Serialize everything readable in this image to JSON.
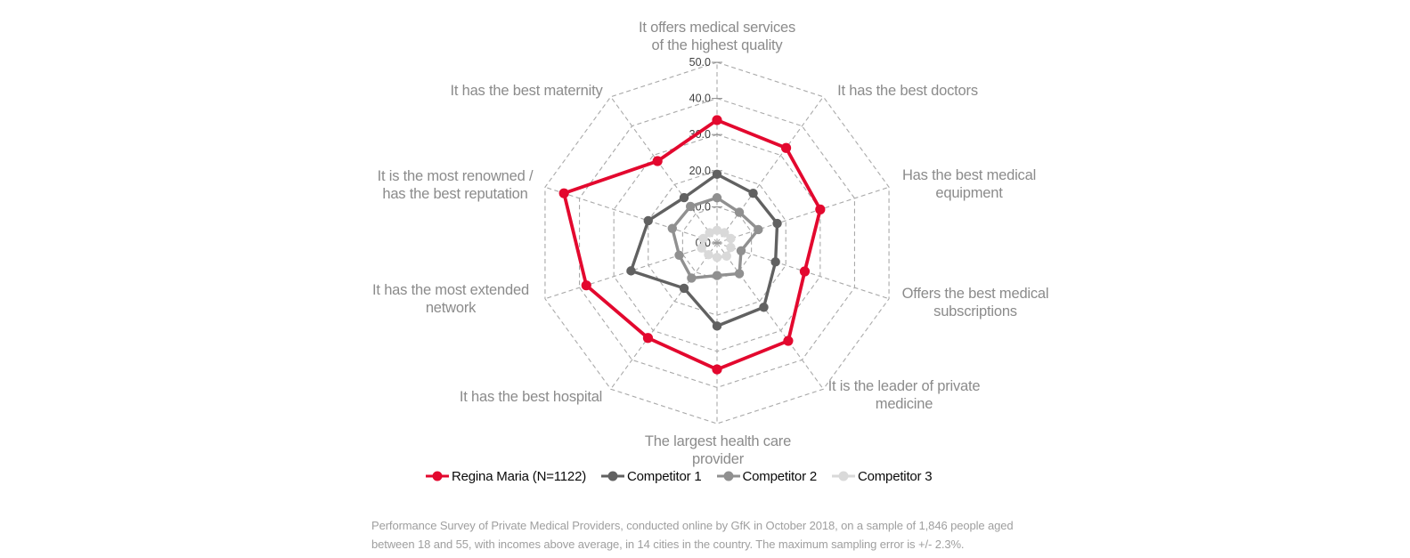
{
  "chart_data": {
    "type": "radar",
    "title": "",
    "categories": [
      "It offers medical services\nof the highest quality",
      "It has the best doctors",
      "Has the best medical\nequipment",
      "Offers the best medical\nsubscriptions",
      "It is the leader of private\nmedicine",
      "The largest health care\nprovider",
      "It has the best hospital",
      "It has the most extended\nnetwork",
      "It is the most renowned /\nhas the best reputation",
      "It has the best maternity"
    ],
    "series": [
      {
        "name": "Regina Maria (N=1122)",
        "color": "#e3082e",
        "values": [
          34,
          32.5,
          30,
          25.5,
          33.5,
          35,
          32.5,
          38,
          44.5,
          28
        ]
      },
      {
        "name": "Competitor 1",
        "color": "#616161",
        "values": [
          19,
          17,
          17.5,
          17,
          22,
          23,
          15.5,
          25,
          20,
          15.5
        ]
      },
      {
        "name": "Competitor 2",
        "color": "#909090",
        "values": [
          12.5,
          10.5,
          12,
          7,
          10.5,
          9,
          12,
          11,
          13,
          12.5
        ]
      },
      {
        "name": "Competitor 3",
        "color": "#d9d9d9",
        "values": [
          3.5,
          3.5,
          4,
          4,
          4.5,
          4,
          4,
          4.5,
          4,
          3.5
        ]
      }
    ],
    "radial_axis": {
      "min": 0,
      "max": 50,
      "step": 10,
      "tick_labels": [
        "0.0",
        "10.0",
        "20.0",
        "30.0",
        "40.0",
        "50.0"
      ]
    },
    "grid": "dashed concentric decagon rings with dashed radial spokes",
    "legend_position": "bottom"
  },
  "footnote": {
    "text": "Performance Survey of Private Medical Providers, conducted online by GfK in October 2018, on a sample of 1,846 people aged\nbetween 18 and 55, with incomes above average, in 14 cities in the country. The maximum sampling error is +/- 2.3%."
  }
}
